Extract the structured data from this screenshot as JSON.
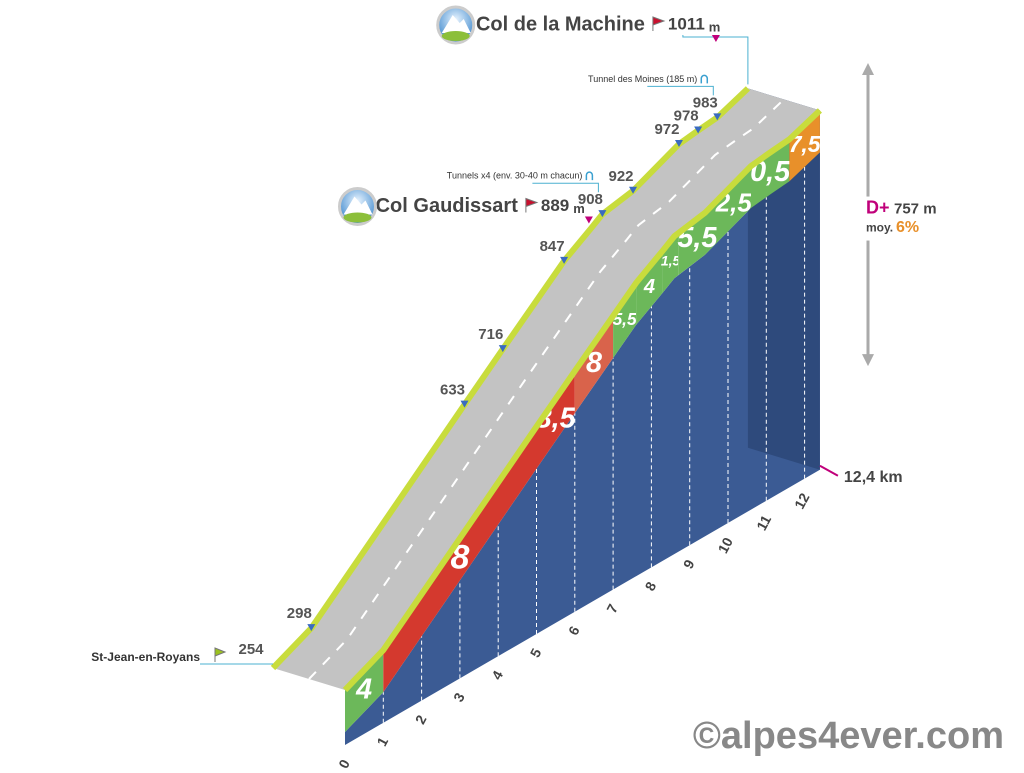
{
  "chart_data": {
    "type": "climb_profile",
    "markers": [
      {
        "km": 0,
        "altitude": 254,
        "name": "St-Jean-en-Royans"
      },
      {
        "km": 1,
        "altitude": 298
      },
      {
        "km": 5,
        "altitude": 633
      },
      {
        "km": 6,
        "altitude": 716
      },
      {
        "km": 7.6,
        "altitude": 847
      },
      {
        "km": 8.3,
        "altitude": 889,
        "name": "Col Gaudissart",
        "unit": "m"
      },
      {
        "km": 8.6,
        "altitude": 908,
        "note": "Tunnels x4 (env. 30-40 m chacun)"
      },
      {
        "km": 9.4,
        "altitude": 922
      },
      {
        "km": 10.6,
        "altitude": 972
      },
      {
        "km": 11.1,
        "altitude": 978
      },
      {
        "km": 11.6,
        "altitude": 983,
        "note": "Tunnel des Moines (185 m)"
      },
      {
        "km": 12.4,
        "altitude": 1011,
        "name": "Col de la Machine",
        "unit": "m"
      }
    ],
    "gradients": {
      "bins": [
        0,
        1,
        5,
        6,
        7,
        7.6,
        8.3,
        8.7,
        9.7,
        10.6,
        11.6,
        12.4
      ],
      "values": [
        4,
        8,
        8.5,
        8,
        5.5,
        4,
        1.5,
        5.5,
        2.5,
        0.5,
        7.5
      ],
      "value_labels": [
        "4",
        "8",
        "8,5",
        "8",
        "5,5",
        "4",
        "1,5",
        "5,5",
        "2,5",
        "0,5",
        "7,5"
      ],
      "colors": [
        "#6cb85a",
        "#d4392e",
        "#d4392e",
        "#d9634b",
        "#6cb85a",
        "#6cb85a",
        "#6cb85a",
        "#6cb85a",
        "#6cb85a",
        "#6cb85a",
        "#e8902a"
      ]
    },
    "xticks": [
      0,
      1,
      2,
      3,
      4,
      5,
      6,
      7,
      8,
      9,
      10,
      11,
      12
    ],
    "total_distance": {
      "value": 12.4,
      "label": "12,4 km"
    },
    "elevation_gain": {
      "prefix": "D+",
      "value": 757,
      "label": "757 m"
    },
    "average_gradient": {
      "prefix": "moy.",
      "value": 6,
      "label": "6%"
    },
    "copyright": "©alpes4ever.com"
  }
}
